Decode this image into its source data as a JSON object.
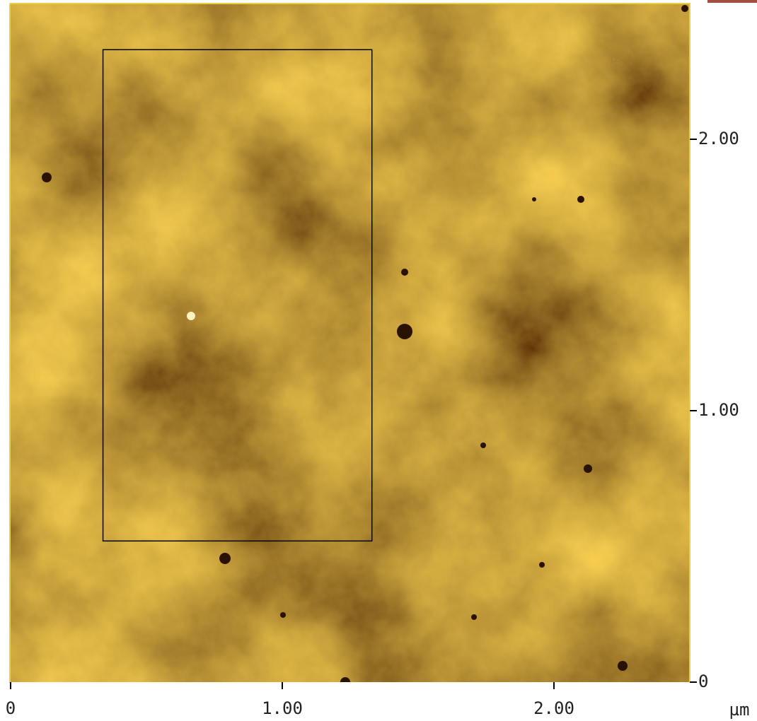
{
  "chart_data": {
    "type": "image",
    "unit": "µm",
    "xlim": [
      0,
      2.5
    ],
    "ylim": [
      0,
      2.5
    ],
    "xticks": [
      0,
      {
        "value": 1,
        "label": "1.00"
      },
      {
        "value": 2,
        "label": "2.00"
      }
    ],
    "yticks": [
      0,
      {
        "value": 1,
        "label": "1.00"
      },
      {
        "value": 2,
        "label": "2.00"
      }
    ],
    "selection": {
      "x": [
        0.34,
        1.33
      ],
      "y": [
        0.52,
        2.33
      ]
    }
  }
}
